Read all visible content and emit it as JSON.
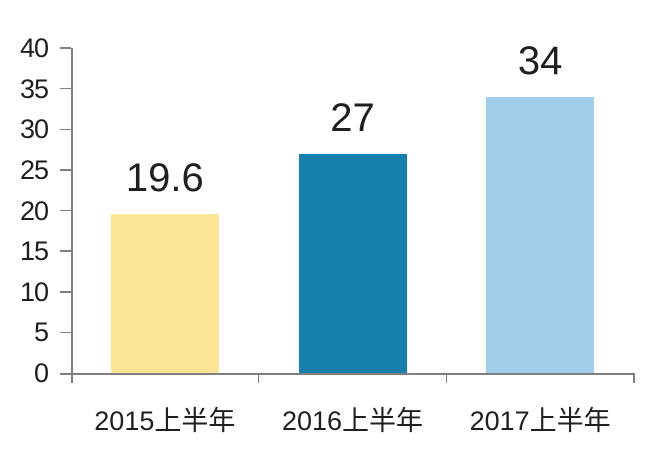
{
  "chart_data": {
    "type": "bar",
    "title": "",
    "xlabel": "",
    "ylabel": "",
    "categories": [
      "2015上半年",
      "2016上半年",
      "2017上半年"
    ],
    "values": [
      19.6,
      27,
      34
    ],
    "data_labels": [
      "19.6",
      "27",
      "34"
    ],
    "ylim": [
      0,
      40
    ],
    "yticks": [
      0,
      5,
      10,
      15,
      20,
      25,
      30,
      35,
      40
    ],
    "grid": false,
    "legend": "none",
    "bar_colors": [
      "#FBE698",
      "#1880AD",
      "#A3CEEB"
    ],
    "axis_color": "#7F7F7F",
    "text_color": "#1F1F1F",
    "background_color": "#FFFFFF"
  }
}
